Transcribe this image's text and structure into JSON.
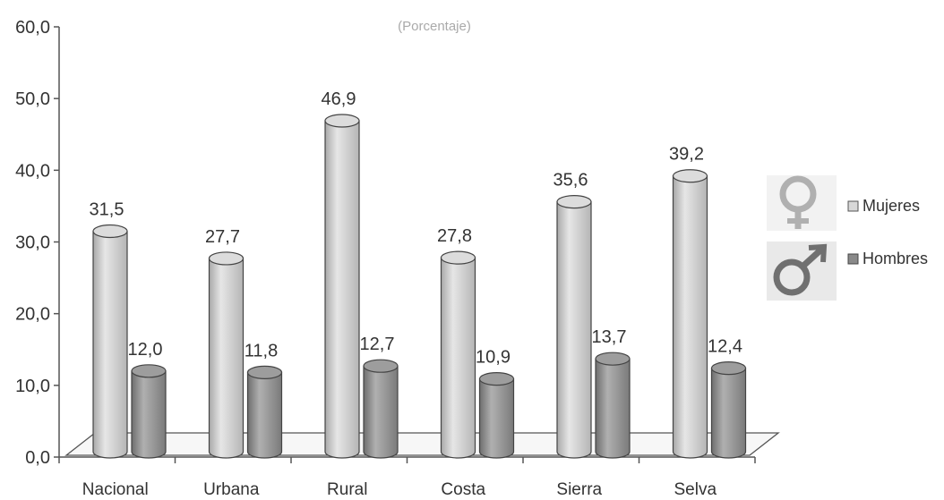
{
  "chart_data": {
    "type": "bar",
    "subtitle": "(Porcentaje)",
    "categories": [
      "Nacional",
      "Urbana",
      "Rural",
      "Costa",
      "Sierra",
      "Selva"
    ],
    "series": [
      {
        "name": "Mujeres",
        "values": [
          31.5,
          27.7,
          46.9,
          27.8,
          35.6,
          39.2
        ],
        "color": "#c9c9c9"
      },
      {
        "name": "Hombres",
        "values": [
          12.0,
          11.8,
          12.7,
          10.9,
          13.7,
          12.4
        ],
        "color": "#8f8f8f"
      }
    ],
    "ylim": [
      0,
      60
    ],
    "yticks": [
      "0,0",
      "10,0",
      "20,0",
      "30,0",
      "40,0",
      "50,0",
      "60,0"
    ],
    "value_labels": {
      "Mujeres": [
        "31,5",
        "27,7",
        "46,9",
        "27,8",
        "35,6",
        "39,2"
      ],
      "Hombres": [
        "12,0",
        "11,8",
        "12,7",
        "10,9",
        "13,7",
        "12,4"
      ]
    },
    "legend": {
      "position": "right",
      "entries": [
        "Mujeres",
        "Hombres"
      ],
      "icons": [
        "female-symbol-icon",
        "male-symbol-icon"
      ]
    }
  }
}
